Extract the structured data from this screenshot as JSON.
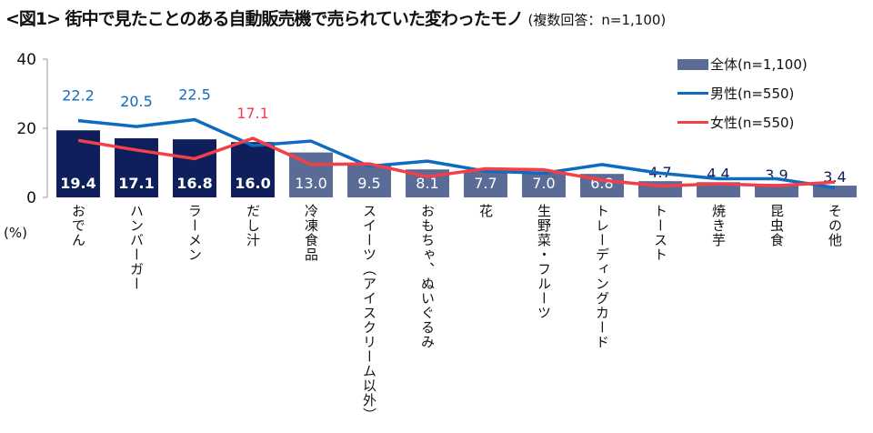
{
  "title": "<図1> 街中で見たことのある自動販売機で売られていた変わったモノ",
  "subtitle": "(複数回答：n=1,100)",
  "chart_data": {
    "type": "bar",
    "title": "<図1> 街中で見たことのある自動販売機で売られていた変わったモノ",
    "subtitle": "(複数回答：n=1,100)",
    "ylabel": "(%)",
    "ylim": [
      0,
      40
    ],
    "yticks": [
      0,
      20,
      40
    ],
    "grid": false,
    "legend_position": "top-right",
    "categories": [
      "おでん",
      "ハンバーガー",
      "ラーメン",
      "だし汁",
      "冷凍食品",
      "スイーツ（アイスクリーム以外）",
      "おもちゃ、ぬいぐるみ",
      "花",
      "生野菜・フルーツ",
      "トレーディングカード",
      "トースト",
      "焼き芋",
      "昆虫食",
      "その他"
    ],
    "series": [
      {
        "name": "全体(n=1,100)",
        "type": "bar",
        "color": "#5a6b96",
        "highlight_color": "#0e1f5b",
        "values": [
          19.4,
          17.1,
          16.8,
          16.0,
          13.0,
          9.5,
          8.1,
          7.7,
          7.0,
          6.8,
          4.7,
          4.4,
          3.9,
          3.4
        ]
      },
      {
        "name": "男性(n=550)",
        "type": "line",
        "color": "#0e6bbf",
        "values": [
          22.2,
          20.5,
          22.5,
          15.0,
          16.3,
          9.0,
          10.5,
          7.6,
          7.0,
          9.5,
          7.0,
          5.4,
          5.4,
          2.8
        ],
        "labeled": [
          22.2,
          20.5,
          22.5
        ]
      },
      {
        "name": "女性(n=550)",
        "type": "line",
        "color": "#f43f48",
        "values": [
          16.5,
          13.7,
          11.2,
          17.1,
          9.5,
          9.7,
          6.0,
          8.3,
          8.0,
          5.0,
          3.3,
          3.9,
          3.4,
          4.4
        ],
        "labeled": [
          17.1
        ]
      }
    ]
  }
}
